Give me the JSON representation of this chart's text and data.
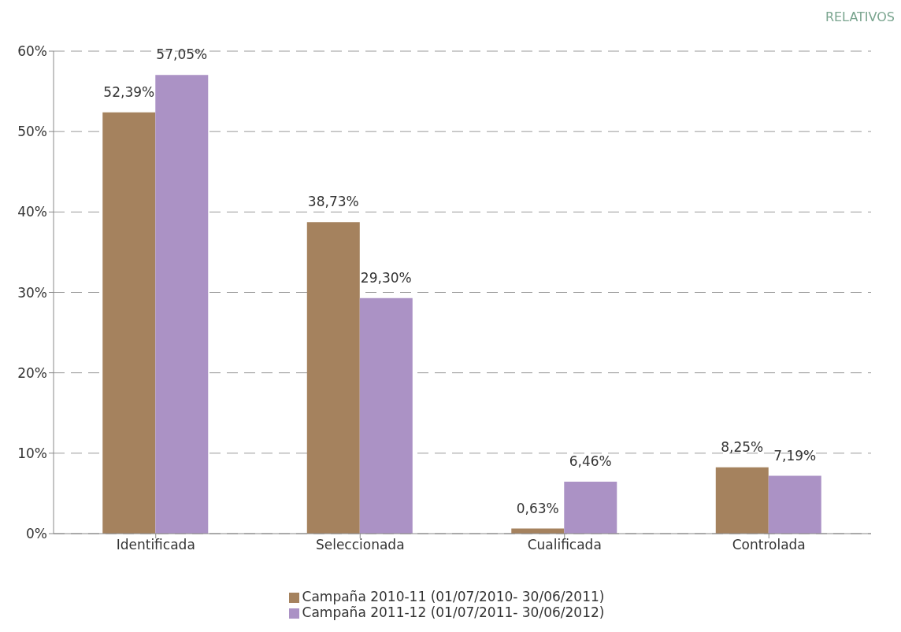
{
  "chart_data": {
    "type": "bar",
    "subtitle": "RELATIVOS",
    "categories": [
      "Identificada",
      "Seleccionada",
      "Cualificada",
      "Controlada"
    ],
    "series": [
      {
        "name": "Campaña 2010-11 (01/07/2010- 30/06/2011)",
        "color": "#a5825e",
        "values": [
          52.39,
          38.73,
          0.63,
          8.25
        ],
        "value_labels": [
          "52,39%",
          "38,73%",
          "0,63%",
          "8,25%"
        ]
      },
      {
        "name": "Campaña 2011-12 (01/07/2011- 30/06/2012)",
        "color": "#ab92c5",
        "values": [
          57.05,
          29.3,
          6.46,
          7.19
        ],
        "value_labels": [
          "57,05%",
          "29,30%",
          "6,46%",
          "7,19%"
        ]
      }
    ],
    "ylim": [
      0,
      60
    ],
    "yticks": [
      {
        "value": 0,
        "label": "0%"
      },
      {
        "value": 10,
        "label": "10%"
      },
      {
        "value": 20,
        "label": "20%"
      },
      {
        "value": 30,
        "label": "30%"
      },
      {
        "value": 40,
        "label": "40%"
      },
      {
        "value": 50,
        "label": "50%"
      },
      {
        "value": 60,
        "label": "60%"
      }
    ],
    "grid": "y",
    "legend": "bottom"
  }
}
